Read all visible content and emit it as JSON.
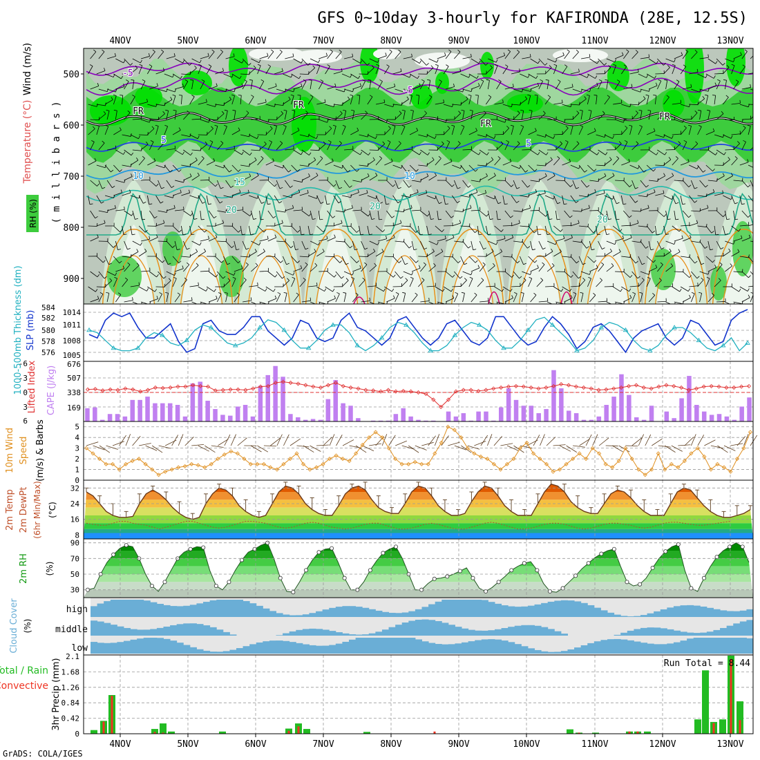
{
  "title": "GFS 0~10day 3-hourly for KAFIRONDA (28E, 12.5S)",
  "footer": "GrADS: COLA/IGES",
  "colors": {
    "rh_light": "#d4e9d4",
    "rh_mid": "#9fd79f",
    "rh_dark": "#3dcc3d",
    "rh_sat": "#00e000",
    "grey_bg": "#bcc8bc",
    "temp_purple": "#8800bb",
    "temp_blue1": "#2244dd",
    "temp_blue2": "#2299dd",
    "temp_teal": "#22bbaa",
    "temp_orange": "#e8901a",
    "temp_magenta": "#d0006c",
    "slp": "#1133cc",
    "thickness": "#20b0c0",
    "cape": "#c080f0",
    "lifted": "#e03030",
    "wind10": "#e09020",
    "temp_fill": "#ee7711",
    "dew": "#b05030",
    "rh2": "#119911",
    "cloud": "#6aaed6",
    "cloud_bg": "#e6e6e6",
    "precip_total": "#22bb22",
    "precip_conv": "#ee3322"
  },
  "chart_data": {
    "days": [
      "4NOV",
      "5NOV",
      "6NOV",
      "7NOV",
      "8NOV",
      "9NOV",
      "10NOV",
      "11NOV",
      "12NOV",
      "13NOV"
    ],
    "panels": [
      {
        "id": "upper-air",
        "type": "heatmap",
        "ylabel_parts": [
          "Wind (m/s)",
          "Temperature (°C)",
          "RH (%)"
        ],
        "ylabel_inner": "( m i l l i b a r s )",
        "yticks": [
          "500",
          "600",
          "700",
          "800",
          "900"
        ],
        "ylim": [
          950,
          450
        ],
        "isotherm_labels": [
          "-5",
          "-5",
          "FR",
          "FR",
          "FR",
          "FR",
          "5",
          "5",
          "10",
          "10",
          "15",
          "20",
          "20",
          "20"
        ]
      },
      {
        "id": "slp-thickness",
        "type": "line",
        "ylabel_left": "1000-500mb Thickness (dm)",
        "ylabel_right": "SLP (mb)",
        "left_ticks": [
          "584",
          "582",
          "580",
          "578",
          "576"
        ],
        "right_ticks": [
          "1014",
          "1011",
          "1008",
          "1005"
        ],
        "slp_ylim": [
          1003,
          1016
        ],
        "thickness_ylim": [
          575,
          584
        ],
        "slp": [
          1009,
          1008,
          1013,
          1015,
          1014,
          1015,
          1011,
          1008,
          1008,
          1010,
          1012,
          1007,
          1004,
          1005,
          1012,
          1013,
          1010,
          1009,
          1009,
          1011,
          1014,
          1014,
          1010,
          1008,
          1006,
          1008,
          1013,
          1012,
          1008,
          1007,
          1008,
          1013,
          1015,
          1011,
          1010,
          1008,
          1006,
          1008,
          1013,
          1014,
          1011,
          1008,
          1006,
          1008,
          1012,
          1013,
          1010,
          1007,
          1006,
          1008,
          1014,
          1014,
          1011,
          1008,
          1006,
          1007,
          1011,
          1014,
          1012,
          1009,
          1005,
          1007,
          1011,
          1012,
          1010,
          1007,
          1004,
          1008,
          1010,
          1011,
          1012,
          1008,
          1006,
          1008,
          1013,
          1012,
          1009,
          1006,
          1007,
          1013,
          1015,
          1016
        ],
        "thickness": [
          580,
          579.5,
          578,
          576.5,
          576,
          576,
          576.5,
          578.5,
          579.5,
          579,
          577.5,
          577,
          578,
          580,
          581,
          580.5,
          579,
          577.5,
          577,
          577.5,
          578.5,
          580.5,
          582,
          581.5,
          580,
          578,
          576.5,
          576.5,
          578,
          580,
          581,
          581,
          579.5,
          577,
          576,
          577,
          578.5,
          580.5,
          581.5,
          581,
          579.5,
          577.5,
          576,
          576,
          577,
          579,
          580.5,
          581.5,
          581,
          580,
          578,
          576.5,
          576.5,
          578,
          580,
          582,
          582.5,
          581,
          579.5,
          578,
          576,
          576.5,
          578,
          580.5,
          581.5,
          581,
          580,
          578,
          576.5,
          576,
          577,
          579,
          580.5,
          580.5,
          579.5,
          578,
          576.5,
          576,
          577,
          578.5,
          576,
          577.5
        ]
      },
      {
        "id": "cape-li",
        "type": "bar",
        "ylabel_left": "Lifted Index",
        "ylabel_right": "CAPE (J/kg)",
        "left_ticks": [
          "-6",
          "-3",
          "0",
          "3",
          "6"
        ],
        "right_ticks": [
          "676",
          "507",
          "338",
          "169"
        ],
        "cape_ylim": [
          0,
          676
        ],
        "li_ylim": [
          6,
          -6
        ],
        "cape": [
          160,
          170,
          20,
          90,
          90,
          60,
          260,
          260,
          300,
          220,
          220,
          220,
          200,
          60,
          460,
          480,
          250,
          150,
          80,
          70,
          180,
          200,
          60,
          430,
          560,
          670,
          540,
          90,
          50,
          20,
          30,
          20,
          270,
          500,
          220,
          190,
          40,
          0,
          10,
          10,
          10,
          90,
          160,
          60,
          20,
          10,
          10,
          0,
          120,
          60,
          100,
          10,
          120,
          120,
          10,
          170,
          400,
          260,
          190,
          190,
          100,
          150,
          620,
          400,
          130,
          100,
          20,
          20,
          60,
          200,
          300,
          570,
          320,
          50,
          20,
          190,
          0,
          120,
          40,
          280,
          550,
          200,
          120,
          80,
          90,
          60,
          20,
          180,
          290
        ],
        "lifted_index": [
          -0.6,
          -0.7,
          -0.4,
          -0.6,
          -0.5,
          -0.8,
          -0.6,
          -0.2,
          -0.5,
          -1.0,
          -0.9,
          -1.0,
          -1.2,
          -1.2,
          -1.5,
          -1.3,
          -1.2,
          -0.4,
          -0.5,
          -0.6,
          -0.6,
          -0.5,
          -0.8,
          -1.2,
          -1.3,
          -2.0,
          -2.2,
          -2.0,
          -1.8,
          -1.5,
          -1.2,
          -1.0,
          -1.5,
          -2.0,
          -1.3,
          -1.0,
          -0.8,
          -0.5,
          -0.4,
          -0.2,
          -0.5,
          -0.2,
          -0.3,
          -0.2,
          0.0,
          0.3,
          1.5,
          3.0,
          1.5,
          -0.2,
          -0.5,
          -0.5,
          -0.3,
          -0.5,
          -0.8,
          -1.0,
          -1.2,
          -1.3,
          -1.2,
          -1.0,
          -0.8,
          -1.0,
          -1.3,
          -1.7,
          -1.5,
          -1.2,
          -1.0,
          -0.8,
          -0.5,
          -0.6,
          -0.8,
          -1.0,
          -1.3,
          -1.5,
          -1.0,
          -0.8,
          -1.2,
          -1.5,
          -1.3,
          -1.0,
          -0.5,
          -0.8,
          -1.2,
          -1.3,
          -1.2,
          -1.0,
          -1.0,
          -1.2,
          -1.3
        ]
      },
      {
        "id": "wind10",
        "type": "line",
        "ylabel": "10m Wind Speed (m/s) & Barbs",
        "yticks": [
          "5",
          "4",
          "3",
          "2",
          "1",
          "0"
        ],
        "ylim": [
          0,
          5.5
        ],
        "speed": [
          3,
          2.5,
          2,
          1.5,
          1.5,
          1,
          1.5,
          1.8,
          2,
          1.5,
          1,
          0.5,
          0.8,
          1,
          1.2,
          1.3,
          1.5,
          1.4,
          1.2,
          1.5,
          2,
          2.4,
          2.7,
          2.5,
          2,
          1.5,
          1.5,
          1.5,
          1.2,
          1,
          1.5,
          2,
          2.5,
          1.5,
          1,
          1.2,
          1.5,
          2,
          2.3,
          2,
          1.8,
          2.5,
          3.3,
          4,
          4.5,
          4,
          3,
          2,
          1.5,
          1.5,
          1.7,
          1.5,
          1.5,
          2.5,
          3.5,
          5,
          4.7,
          4,
          3,
          2.5,
          2.2,
          2,
          1.5,
          1,
          1.5,
          2,
          3,
          3.5,
          2.5,
          2,
          1.5,
          0.8,
          1,
          1.5,
          2,
          2.5,
          2,
          3,
          2.5,
          1.5,
          1.2,
          1.8,
          3,
          2,
          1,
          0.5,
          1,
          2.5,
          1,
          1.5,
          1.2,
          1.8,
          2.5,
          3,
          2.2,
          1,
          1.5,
          1.2,
          0.8,
          2,
          3,
          4.5
        ]
      },
      {
        "id": "temp2m",
        "type": "area",
        "ylabel": "2m Temp 2m DewPt (6hr Min/Max) (°C)",
        "yticks": [
          "32",
          "24",
          "16",
          "8"
        ],
        "ylim": [
          6,
          36
        ],
        "temp": [
          30,
          28,
          24,
          20,
          18,
          17,
          17,
          17.5,
          24,
          29,
          31,
          29,
          26,
          22,
          19,
          17,
          16,
          17,
          24,
          29,
          32,
          31,
          28,
          23,
          20,
          18,
          17,
          18,
          24,
          30,
          33,
          32,
          29,
          24,
          21,
          19,
          18,
          18,
          23,
          29,
          32,
          33,
          31,
          26,
          22,
          20,
          19,
          19,
          24,
          30,
          33,
          32,
          28,
          23,
          20,
          18,
          18,
          19,
          25,
          30,
          33,
          32,
          28,
          23,
          20,
          18,
          18,
          18,
          24,
          30,
          34,
          33,
          30,
          25,
          22,
          20,
          19,
          19,
          24,
          29,
          31,
          30,
          27,
          23,
          20,
          18,
          18,
          18,
          24,
          30,
          32,
          31,
          27,
          23,
          20,
          18,
          17,
          17,
          18,
          19,
          21
        ],
        "dew": [
          14,
          13.5,
          13,
          13,
          14,
          15,
          15,
          14,
          13.5,
          13,
          12,
          11,
          12,
          13,
          14,
          15,
          15,
          14,
          13,
          12,
          11.5,
          12,
          13,
          14,
          15,
          15,
          14.5,
          14,
          13,
          12,
          11.5,
          12,
          13,
          14,
          14.5,
          14,
          13,
          12,
          11.5,
          11,
          11.5,
          12.5,
          13.5,
          14,
          14,
          13,
          12,
          11,
          11,
          11.5,
          12.5,
          13.5,
          14,
          13.5,
          12.5,
          11.5,
          11,
          11,
          12,
          13,
          14,
          14.5,
          14,
          13,
          12,
          11,
          11,
          11.5,
          12.5,
          13.5,
          14,
          14,
          13.5,
          12.5,
          11.5,
          11,
          11.5,
          12.5,
          13.5,
          14,
          14,
          13.5,
          13,
          12,
          11.5,
          12,
          13,
          14,
          14.5,
          14.5,
          14,
          13.5,
          13,
          13,
          13.5,
          14,
          14.5,
          15
        ]
      },
      {
        "id": "rh2m",
        "type": "area",
        "ylabel": "2m RH (%)",
        "yticks": [
          "90",
          "70",
          "50",
          "30"
        ],
        "ylim": [
          20,
          95
        ],
        "rh": [
          30,
          32,
          50,
          65,
          75,
          83,
          87,
          85,
          70,
          50,
          35,
          28,
          40,
          55,
          70,
          78,
          82,
          85,
          84,
          55,
          35,
          30,
          40,
          55,
          68,
          78,
          82,
          87,
          90,
          70,
          45,
          28,
          27,
          40,
          55,
          68,
          78,
          82,
          83,
          65,
          45,
          30,
          30,
          40,
          55,
          67,
          77,
          82,
          85,
          70,
          50,
          30,
          30,
          38,
          44,
          45,
          47,
          50,
          54,
          58,
          45,
          32,
          28,
          33,
          40,
          47,
          55,
          60,
          64,
          66,
          55,
          38,
          28,
          27,
          32,
          40,
          48,
          57,
          64,
          71,
          76,
          80,
          82,
          60,
          40,
          35,
          37,
          45,
          58,
          70,
          79,
          85,
          88,
          55,
          32,
          28,
          45,
          60,
          72,
          80,
          85,
          90,
          85,
          65
        ],
        "pct": 1
      },
      {
        "id": "cloud",
        "type": "heatmap",
        "ylabel": "Cloud Cover (%)",
        "levels": [
          "high",
          "middle",
          "low"
        ]
      },
      {
        "id": "precip",
        "type": "bar",
        "ylabel_left": "Total / Rain",
        "ylabel_left2": "Convective",
        "ylabel": "3hr Precip (mm)",
        "yticks": [
          "2.1",
          "1.68",
          "1.26",
          "0.84",
          "0.42",
          "0"
        ],
        "ylim": [
          0,
          2.1
        ],
        "run_total": "Run Total = 8.44"
      }
    ]
  }
}
